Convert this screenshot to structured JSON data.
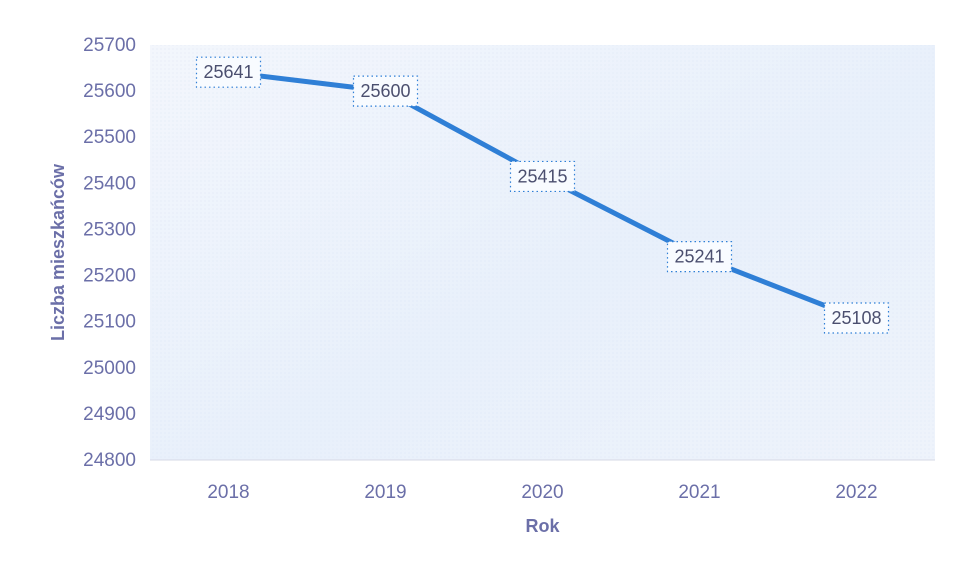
{
  "chart_data": {
    "type": "line",
    "categories": [
      "2018",
      "2019",
      "2020",
      "2021",
      "2022"
    ],
    "values": [
      25641,
      25600,
      25415,
      25241,
      25108
    ],
    "xlabel": "Rok",
    "ylabel": "Liczba mieszkańców",
    "ylim": [
      24800,
      25700
    ],
    "yticks": [
      25700,
      25600,
      25500,
      25400,
      25300,
      25200,
      25100,
      25000,
      24900,
      24800
    ],
    "grid": false,
    "legend": "none",
    "colors": {
      "line": "#2f7fd6",
      "plot_background": "#eef3fb",
      "axis_line": "#d6d8e6",
      "text": "#6b6fa8",
      "data_label_border": "#2f7fd6"
    }
  }
}
